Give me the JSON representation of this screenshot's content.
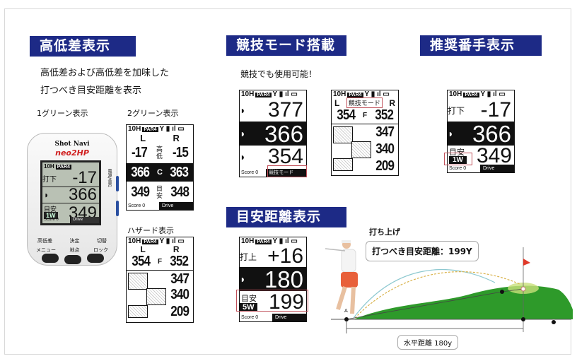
{
  "section1": {
    "title": "高低差表示",
    "desc1": "高低差および高低差を加味した",
    "desc2": "打つべき目安距離を表示",
    "label_1green": "1グリーン表示",
    "label_2green": "2グリーン表示",
    "label_hazard": "ハザード表示"
  },
  "device": {
    "brand": "Shot Navi",
    "model": "neo2HP",
    "side_label": "電源/音声",
    "btn_top": [
      "高低差",
      "決定",
      "切替"
    ],
    "btn_bottom": [
      "メニュー",
      "地点",
      "ロック"
    ],
    "screen": {
      "hole": "10H",
      "par": "PAR4",
      "row1_label": "打下",
      "row1_value": "-17",
      "row2_value": "366",
      "row3_label": "目安",
      "row3_club": "1W",
      "row3_value": "349",
      "score_label": "Score",
      "score": "0",
      "drive_label": "Drive"
    }
  },
  "two_green": {
    "hole": "10H",
    "par": "PAR4",
    "left": "L",
    "right": "R",
    "elev_left": "-17",
    "elev_label": "高低",
    "elev_right": "-15",
    "center_left": "366",
    "center_mid": "C",
    "center_right": "363",
    "target_left": "349",
    "target_label": "目安",
    "target_right": "348",
    "score_label": "Score",
    "score": "0",
    "drive_label": "Drive"
  },
  "hazard": {
    "hole": "10H",
    "par": "PAR4",
    "left": "L",
    "right": "R",
    "front_left": "354",
    "front_mid": "F",
    "front_right": "352",
    "distances": [
      "347",
      "340",
      "209"
    ]
  },
  "section2": {
    "title": "競技モード搭載",
    "desc": "競技でも使用可能！",
    "screenA": {
      "hole": "10H",
      "par": "PAR4",
      "values": [
        "377",
        "366",
        "354"
      ],
      "score_label": "Score",
      "score": "0",
      "mode": "競技モード"
    },
    "screenB": {
      "hole": "10H",
      "par": "PAR4",
      "left": "L",
      "mode": "競技モード",
      "right": "R",
      "front_left": "354",
      "front_mid": "F",
      "front_right": "352",
      "distances": [
        "347",
        "340",
        "209"
      ]
    }
  },
  "section3": {
    "title": "推奨番手表示",
    "screen": {
      "hole": "10H",
      "par": "PAR4",
      "row1_label": "打下",
      "row1_value": "-17",
      "row2_value": "366",
      "row3_label": "目安",
      "row3_club": "1W",
      "row3_value": "349",
      "score_label": "Score",
      "score": "0",
      "drive_label": "Drive"
    }
  },
  "section4": {
    "title": "目安距離表示",
    "screen": {
      "hole": "10H",
      "par": "PAR4",
      "row1_label": "打上",
      "row1_value": "+16",
      "row2_value": "180",
      "row3_label": "目安",
      "row3_club": "5W",
      "row3_value": "199",
      "score_label": "Score",
      "score": "0",
      "drive_label": "Drive"
    },
    "illustration": {
      "caption": "打ち上げ",
      "callout": "打つべき目安距離：199Y",
      "point_label": "A",
      "horizontal": "水平距離 180y"
    }
  },
  "colors": {
    "header_bg": "#1d2a86",
    "green": "#2e9a2a",
    "highlight": "#c0505a"
  }
}
